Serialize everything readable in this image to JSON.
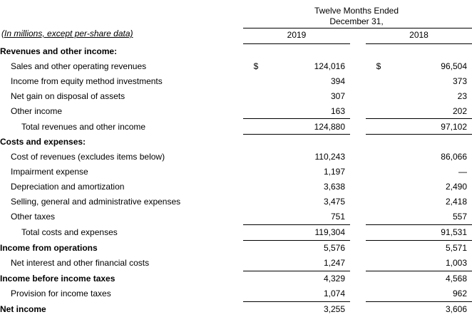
{
  "header": {
    "period_line1": "Twelve Months Ended",
    "period_line2": "December 31,",
    "year1": "2019",
    "year2": "2018",
    "units_note": "(In millions, except per-share data)"
  },
  "currency_symbol": "$",
  "rows": [
    {
      "label": "Revenues and other income:",
      "v2019": "",
      "v2018": ""
    },
    {
      "label": "Sales and other operating revenues",
      "v2019": "124,016",
      "v2018": "96,504"
    },
    {
      "label": "Income from equity method investments",
      "v2019": "394",
      "v2018": "373"
    },
    {
      "label": "Net gain on disposal of assets",
      "v2019": "307",
      "v2018": "23"
    },
    {
      "label": "Other income",
      "v2019": "163",
      "v2018": "202"
    },
    {
      "label": "Total revenues and other income",
      "v2019": "124,880",
      "v2018": "97,102"
    },
    {
      "label": "Costs and expenses:",
      "v2019": "",
      "v2018": ""
    },
    {
      "label": "Cost of revenues (excludes items below)",
      "v2019": "110,243",
      "v2018": "86,066"
    },
    {
      "label": "Impairment expense",
      "v2019": "1,197",
      "v2018": "—"
    },
    {
      "label": "Depreciation and amortization",
      "v2019": "3,638",
      "v2018": "2,490"
    },
    {
      "label": "Selling, general and administrative expenses",
      "v2019": "3,475",
      "v2018": "2,418"
    },
    {
      "label": "Other taxes",
      "v2019": "751",
      "v2018": "557"
    },
    {
      "label": "Total costs and expenses",
      "v2019": "119,304",
      "v2018": "91,531"
    },
    {
      "label": "Income from operations",
      "v2019": "5,576",
      "v2018": "5,571"
    },
    {
      "label": "Net interest and other financial costs",
      "v2019": "1,247",
      "v2018": "1,003"
    },
    {
      "label": "Income before income taxes",
      "v2019": "4,329",
      "v2018": "4,568"
    },
    {
      "label": "Provision for income taxes",
      "v2019": "1,074",
      "v2018": "962"
    },
    {
      "label": "Net income",
      "v2019": "3,255",
      "v2018": "3,606"
    }
  ]
}
